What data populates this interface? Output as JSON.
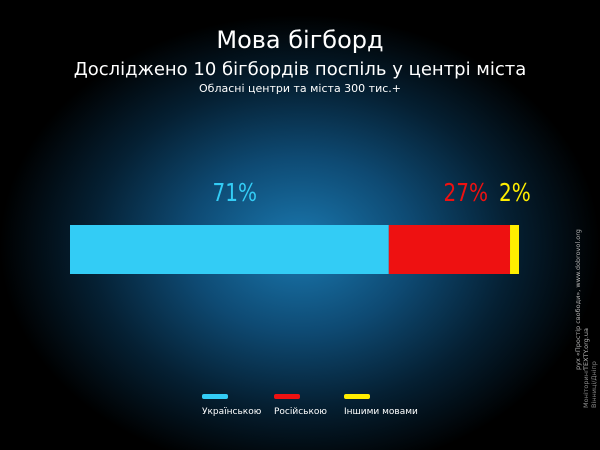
{
  "header": {
    "title": "Мова бігборд",
    "subtitle": "Досліджено 10 бігбордів поспіль у центрі міста",
    "subtitle2": "Обласні центри та міста 300 тис.+"
  },
  "chart_data": {
    "type": "bar",
    "orientation": "horizontal-stacked",
    "categories": [
      "Українською",
      "Російською",
      "Іншими мовами"
    ],
    "values": [
      71,
      27,
      2
    ],
    "labels": [
      "71%",
      "27%",
      "2%"
    ],
    "colors": [
      "#33ccf5",
      "#ee1111",
      "#ffee00"
    ],
    "xlim": [
      0,
      100
    ],
    "legend_position": "bottom"
  },
  "legend": [
    {
      "label": "Українською",
      "color": "#33ccf5"
    },
    {
      "label": "Російською",
      "color": "#ee1111"
    },
    {
      "label": "Іншими мовами",
      "color": "#ffee00"
    }
  ],
  "credits": {
    "left_line1": "Моніторинг",
    "left_line2": "Вінниці/Дніпр",
    "right_line1": "рух «Простір свободи», www.dobrovol.org",
    "right_line2": "TEXTY.org.ua"
  }
}
